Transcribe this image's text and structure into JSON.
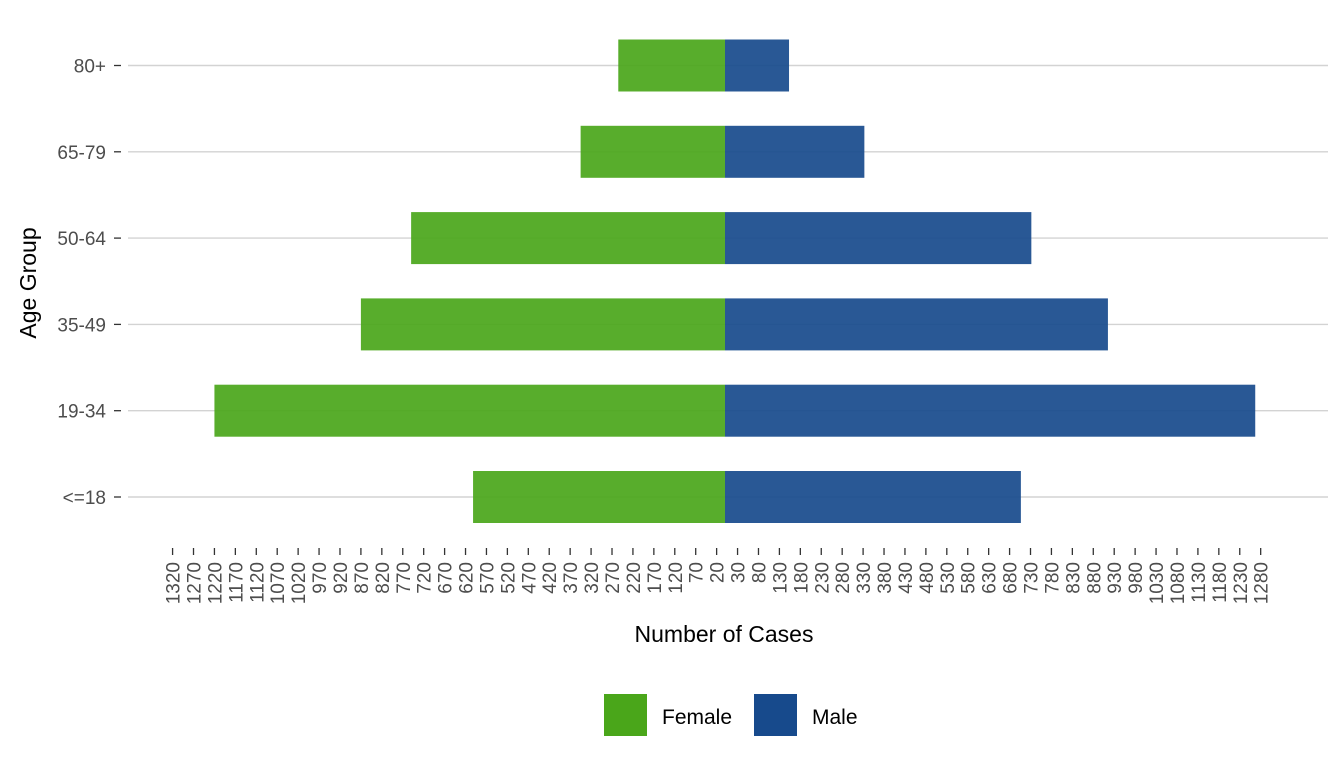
{
  "chart_data": {
    "type": "bar",
    "orientation": "horizontal",
    "subtype": "population-pyramid",
    "title": "",
    "xlabel": "Number of Cases",
    "ylabel": "Age Group",
    "categories": [
      "<=18",
      "19-34",
      "35-49",
      "50-64",
      "65-79",
      "80+"
    ],
    "series": [
      {
        "name": "Female",
        "color": "#4aa61a",
        "values": [
          602,
          1220,
          870,
          750,
          345,
          255
        ]
      },
      {
        "name": "Male",
        "color": "#174a8c",
        "values": [
          707,
          1267,
          915,
          732,
          333,
          153
        ]
      }
    ],
    "x_tick_labels": [
      "1320",
      "1270",
      "1220",
      "1170",
      "1120",
      "1070",
      "1020",
      "970",
      "920",
      "870",
      "820",
      "770",
      "720",
      "670",
      "620",
      "570",
      "520",
      "470",
      "420",
      "370",
      "320",
      "270",
      "220",
      "170",
      "120",
      "70",
      "20",
      "30",
      "80",
      "130",
      "180",
      "230",
      "280",
      "330",
      "380",
      "430",
      "480",
      "530",
      "580",
      "630",
      "680",
      "730",
      "780",
      "830",
      "880",
      "930",
      "980",
      "1030",
      "1080",
      "1130",
      "1180",
      "1230",
      "1280"
    ],
    "x_tick_values": [
      -1320,
      -1270,
      -1220,
      -1170,
      -1120,
      -1070,
      -1020,
      -970,
      -920,
      -870,
      -820,
      -770,
      -720,
      -670,
      -620,
      -570,
      -520,
      -470,
      -420,
      -370,
      -320,
      -270,
      -220,
      -170,
      -120,
      -70,
      -20,
      30,
      80,
      130,
      180,
      230,
      280,
      330,
      380,
      430,
      480,
      530,
      580,
      630,
      680,
      730,
      780,
      830,
      880,
      930,
      980,
      1030,
      1080,
      1130,
      1180,
      1230,
      1280
    ],
    "xlim": [
      -1320,
      1280
    ],
    "grid": "horizontal-major",
    "legend_position": "bottom"
  }
}
